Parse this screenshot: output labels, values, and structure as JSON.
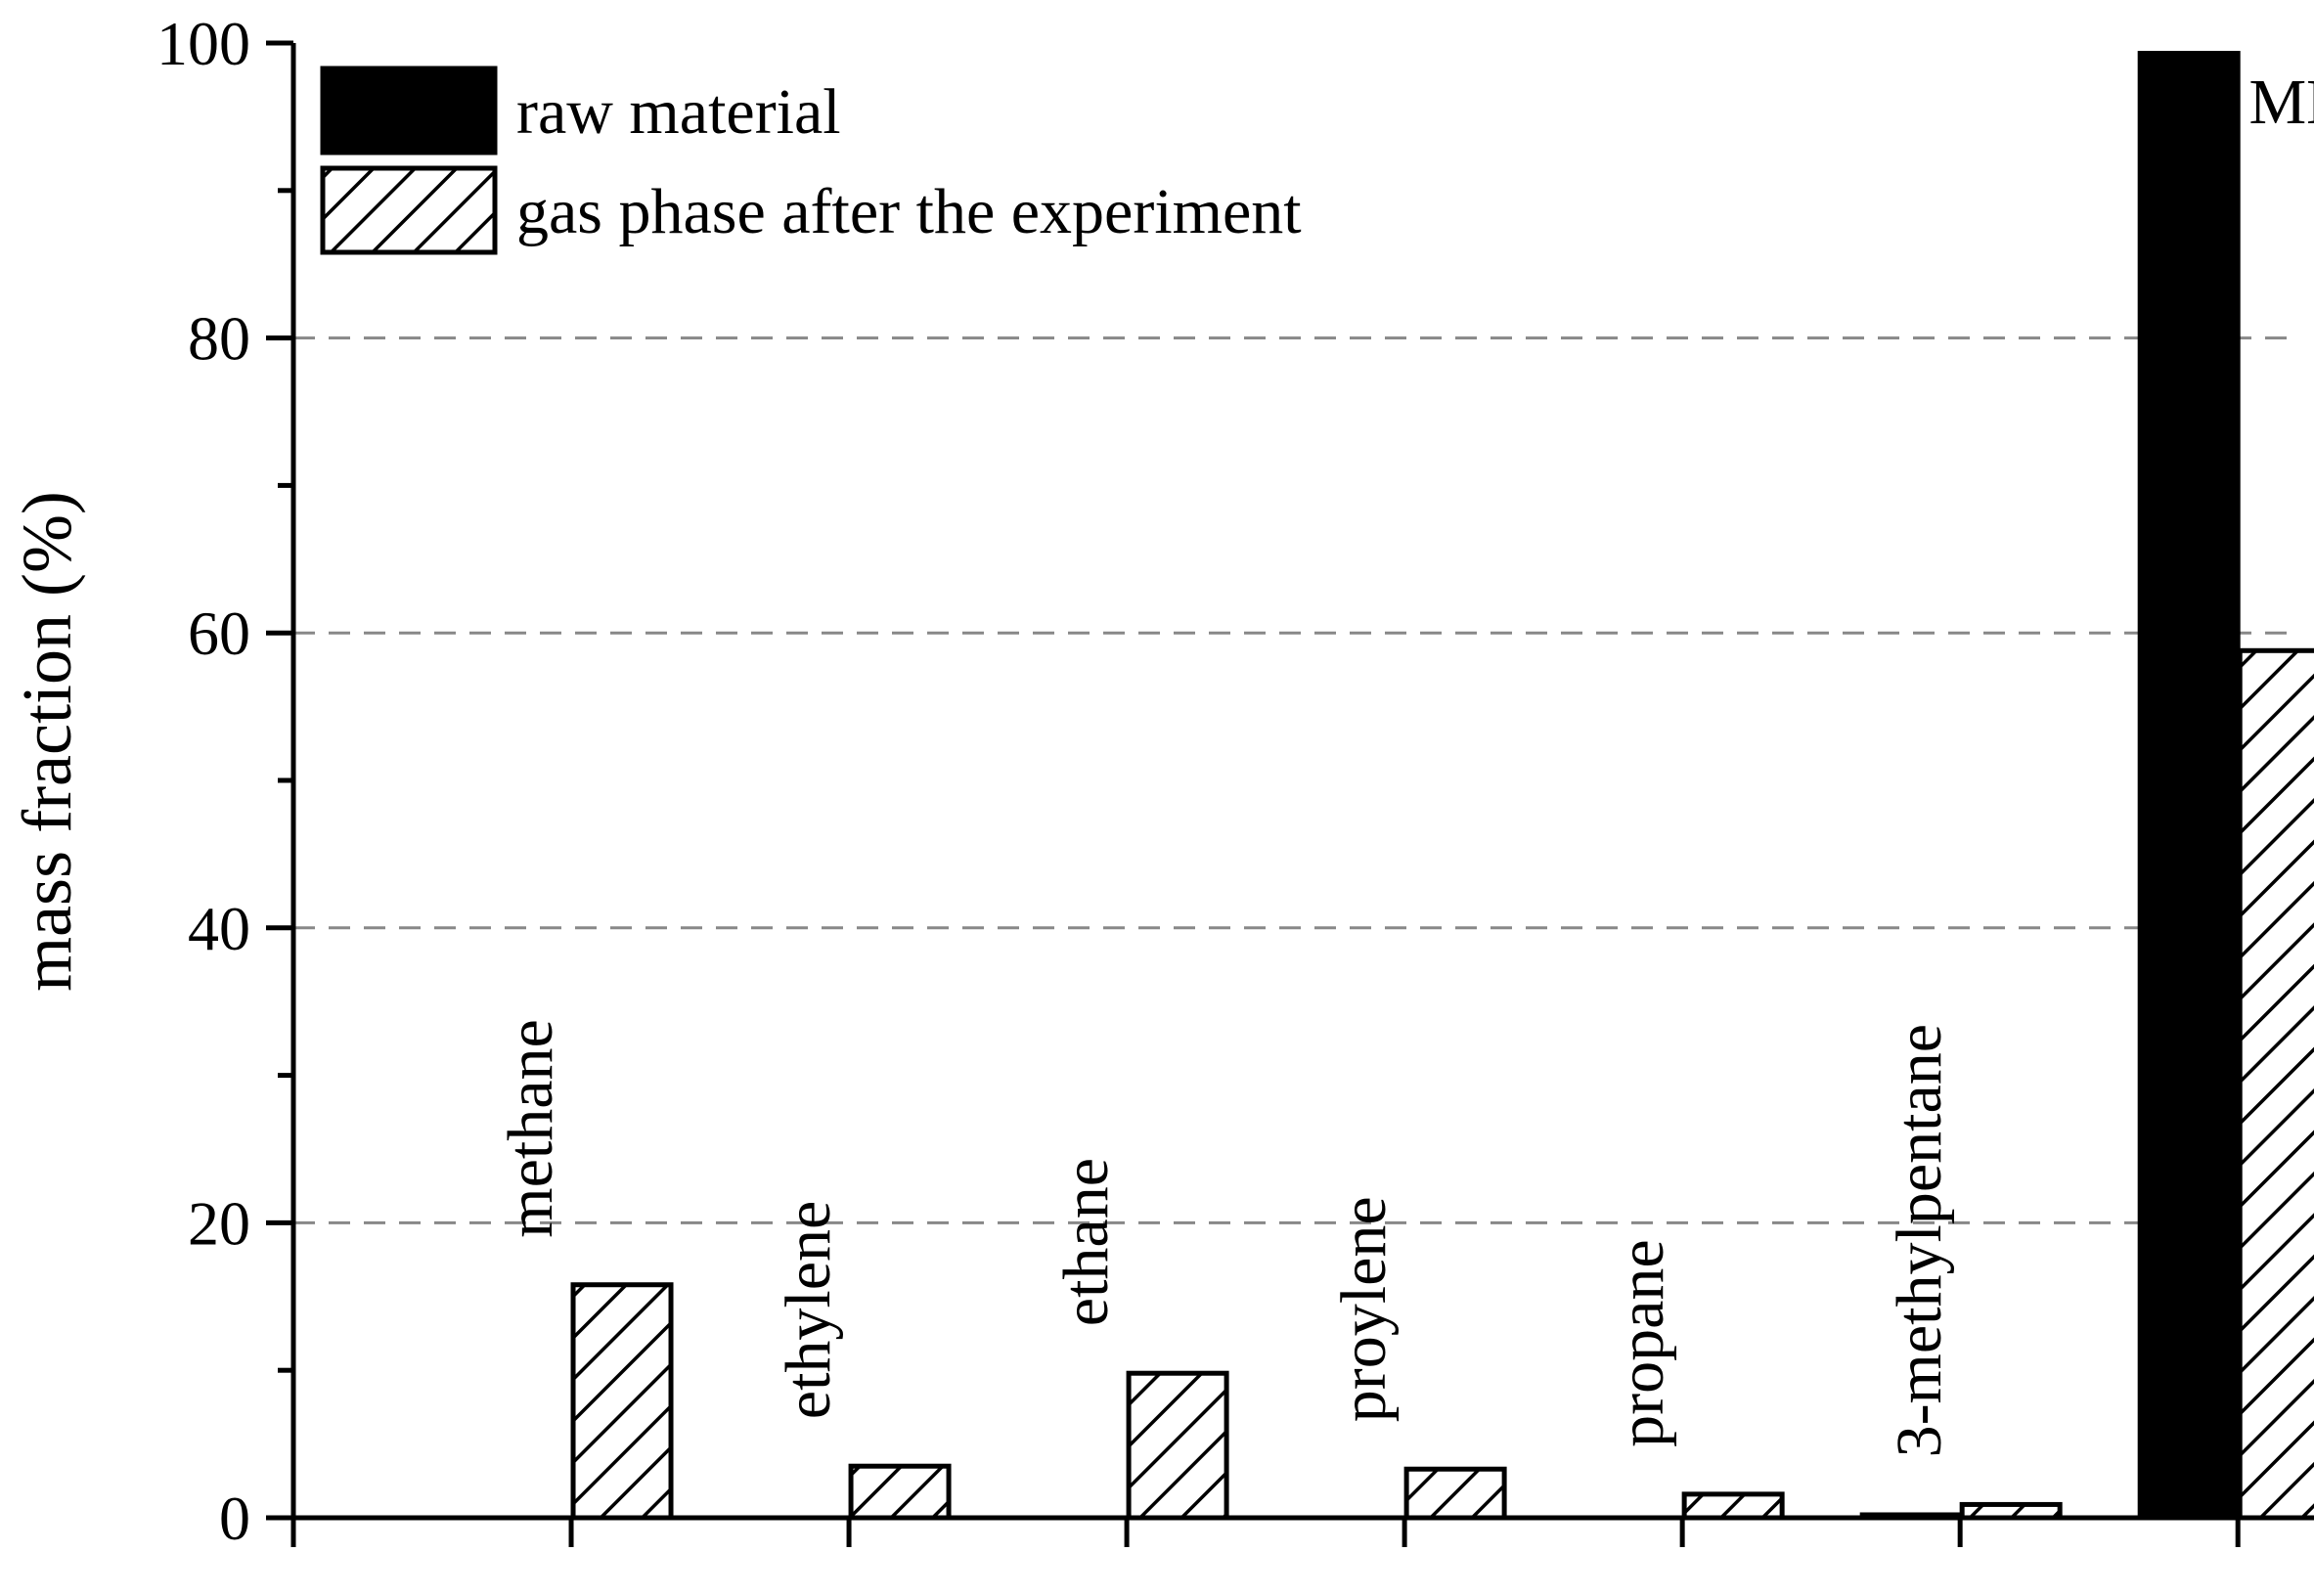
{
  "chart_data": {
    "type": "bar",
    "ylabel": "mass fraction (%)",
    "ylim": [
      0,
      100
    ],
    "yticks": [
      0,
      20,
      40,
      60,
      80,
      100
    ],
    "grid": "horizontal dashed at 20, 40, 60, 80",
    "legend_position": "top-left",
    "categories": [
      "methane",
      "ethylene",
      "ethane",
      "proylene",
      "propane",
      "3-methylpentane",
      "MM"
    ],
    "series": [
      {
        "name": "raw material",
        "pattern": "solid",
        "color": "#000000",
        "values": [
          0,
          0,
          0,
          0,
          0,
          0.2,
          99.3
        ]
      },
      {
        "name": "gas phase after the experiment",
        "pattern": "hatched",
        "color": "#ffffff",
        "values": [
          15.8,
          3.5,
          9.8,
          3.3,
          1.6,
          0.9,
          58.8
        ]
      }
    ]
  }
}
